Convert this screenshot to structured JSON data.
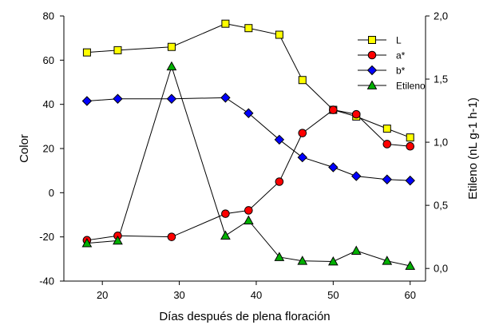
{
  "chart_data": {
    "type": "line",
    "xlabel": "Días después de plena floración",
    "ylabel": "Color",
    "y2label": "Etileno (nL g-1 h-1)",
    "xlim": [
      15,
      62
    ],
    "ylim": [
      -40,
      80
    ],
    "y2lim": [
      -0.1,
      2.0
    ],
    "xticks": [
      20,
      30,
      40,
      50,
      60
    ],
    "yticks": [
      -40,
      -20,
      0,
      20,
      40,
      60,
      80
    ],
    "y2ticks": [
      "0,0",
      "0,5",
      "1,0",
      "1,5",
      "2,0"
    ],
    "y2tick_values": [
      0.0,
      0.5,
      1.0,
      1.5,
      2.0
    ],
    "legend_position": "top-right",
    "grid": false,
    "series": [
      {
        "name": "L",
        "axis": "left",
        "marker": "square",
        "color": "#ffff00",
        "x": [
          18,
          22,
          29,
          36,
          39,
          43,
          46,
          50,
          53,
          57,
          60
        ],
        "y": [
          63.5,
          64.5,
          66,
          76.5,
          74.5,
          71.5,
          51,
          37.5,
          34.5,
          29,
          25
        ]
      },
      {
        "name": "a*",
        "axis": "left",
        "marker": "circle",
        "color": "#ff0000",
        "x": [
          18,
          22,
          29,
          36,
          39,
          43,
          46,
          50,
          53,
          57,
          60
        ],
        "y": [
          -21.5,
          -19.5,
          -20,
          -9.5,
          -8,
          5,
          27,
          37.5,
          35.5,
          22,
          21
        ]
      },
      {
        "name": "b*",
        "axis": "left",
        "marker": "diamond",
        "color": "#0000ff",
        "x": [
          18,
          22,
          29,
          36,
          39,
          43,
          46,
          50,
          53,
          57,
          60
        ],
        "y": [
          41.5,
          42.5,
          42.5,
          43,
          36,
          24,
          16,
          11.5,
          7.5,
          6,
          5.5
        ]
      },
      {
        "name": "Etileno",
        "axis": "right",
        "marker": "triangle",
        "color": "#00b000",
        "x": [
          18,
          22,
          29,
          36,
          39,
          43,
          46,
          50,
          53,
          57,
          60
        ],
        "y": [
          0.2,
          0.22,
          1.6,
          0.26,
          0.38,
          0.09,
          0.06,
          0.055,
          0.14,
          0.06,
          0.02
        ]
      }
    ]
  }
}
